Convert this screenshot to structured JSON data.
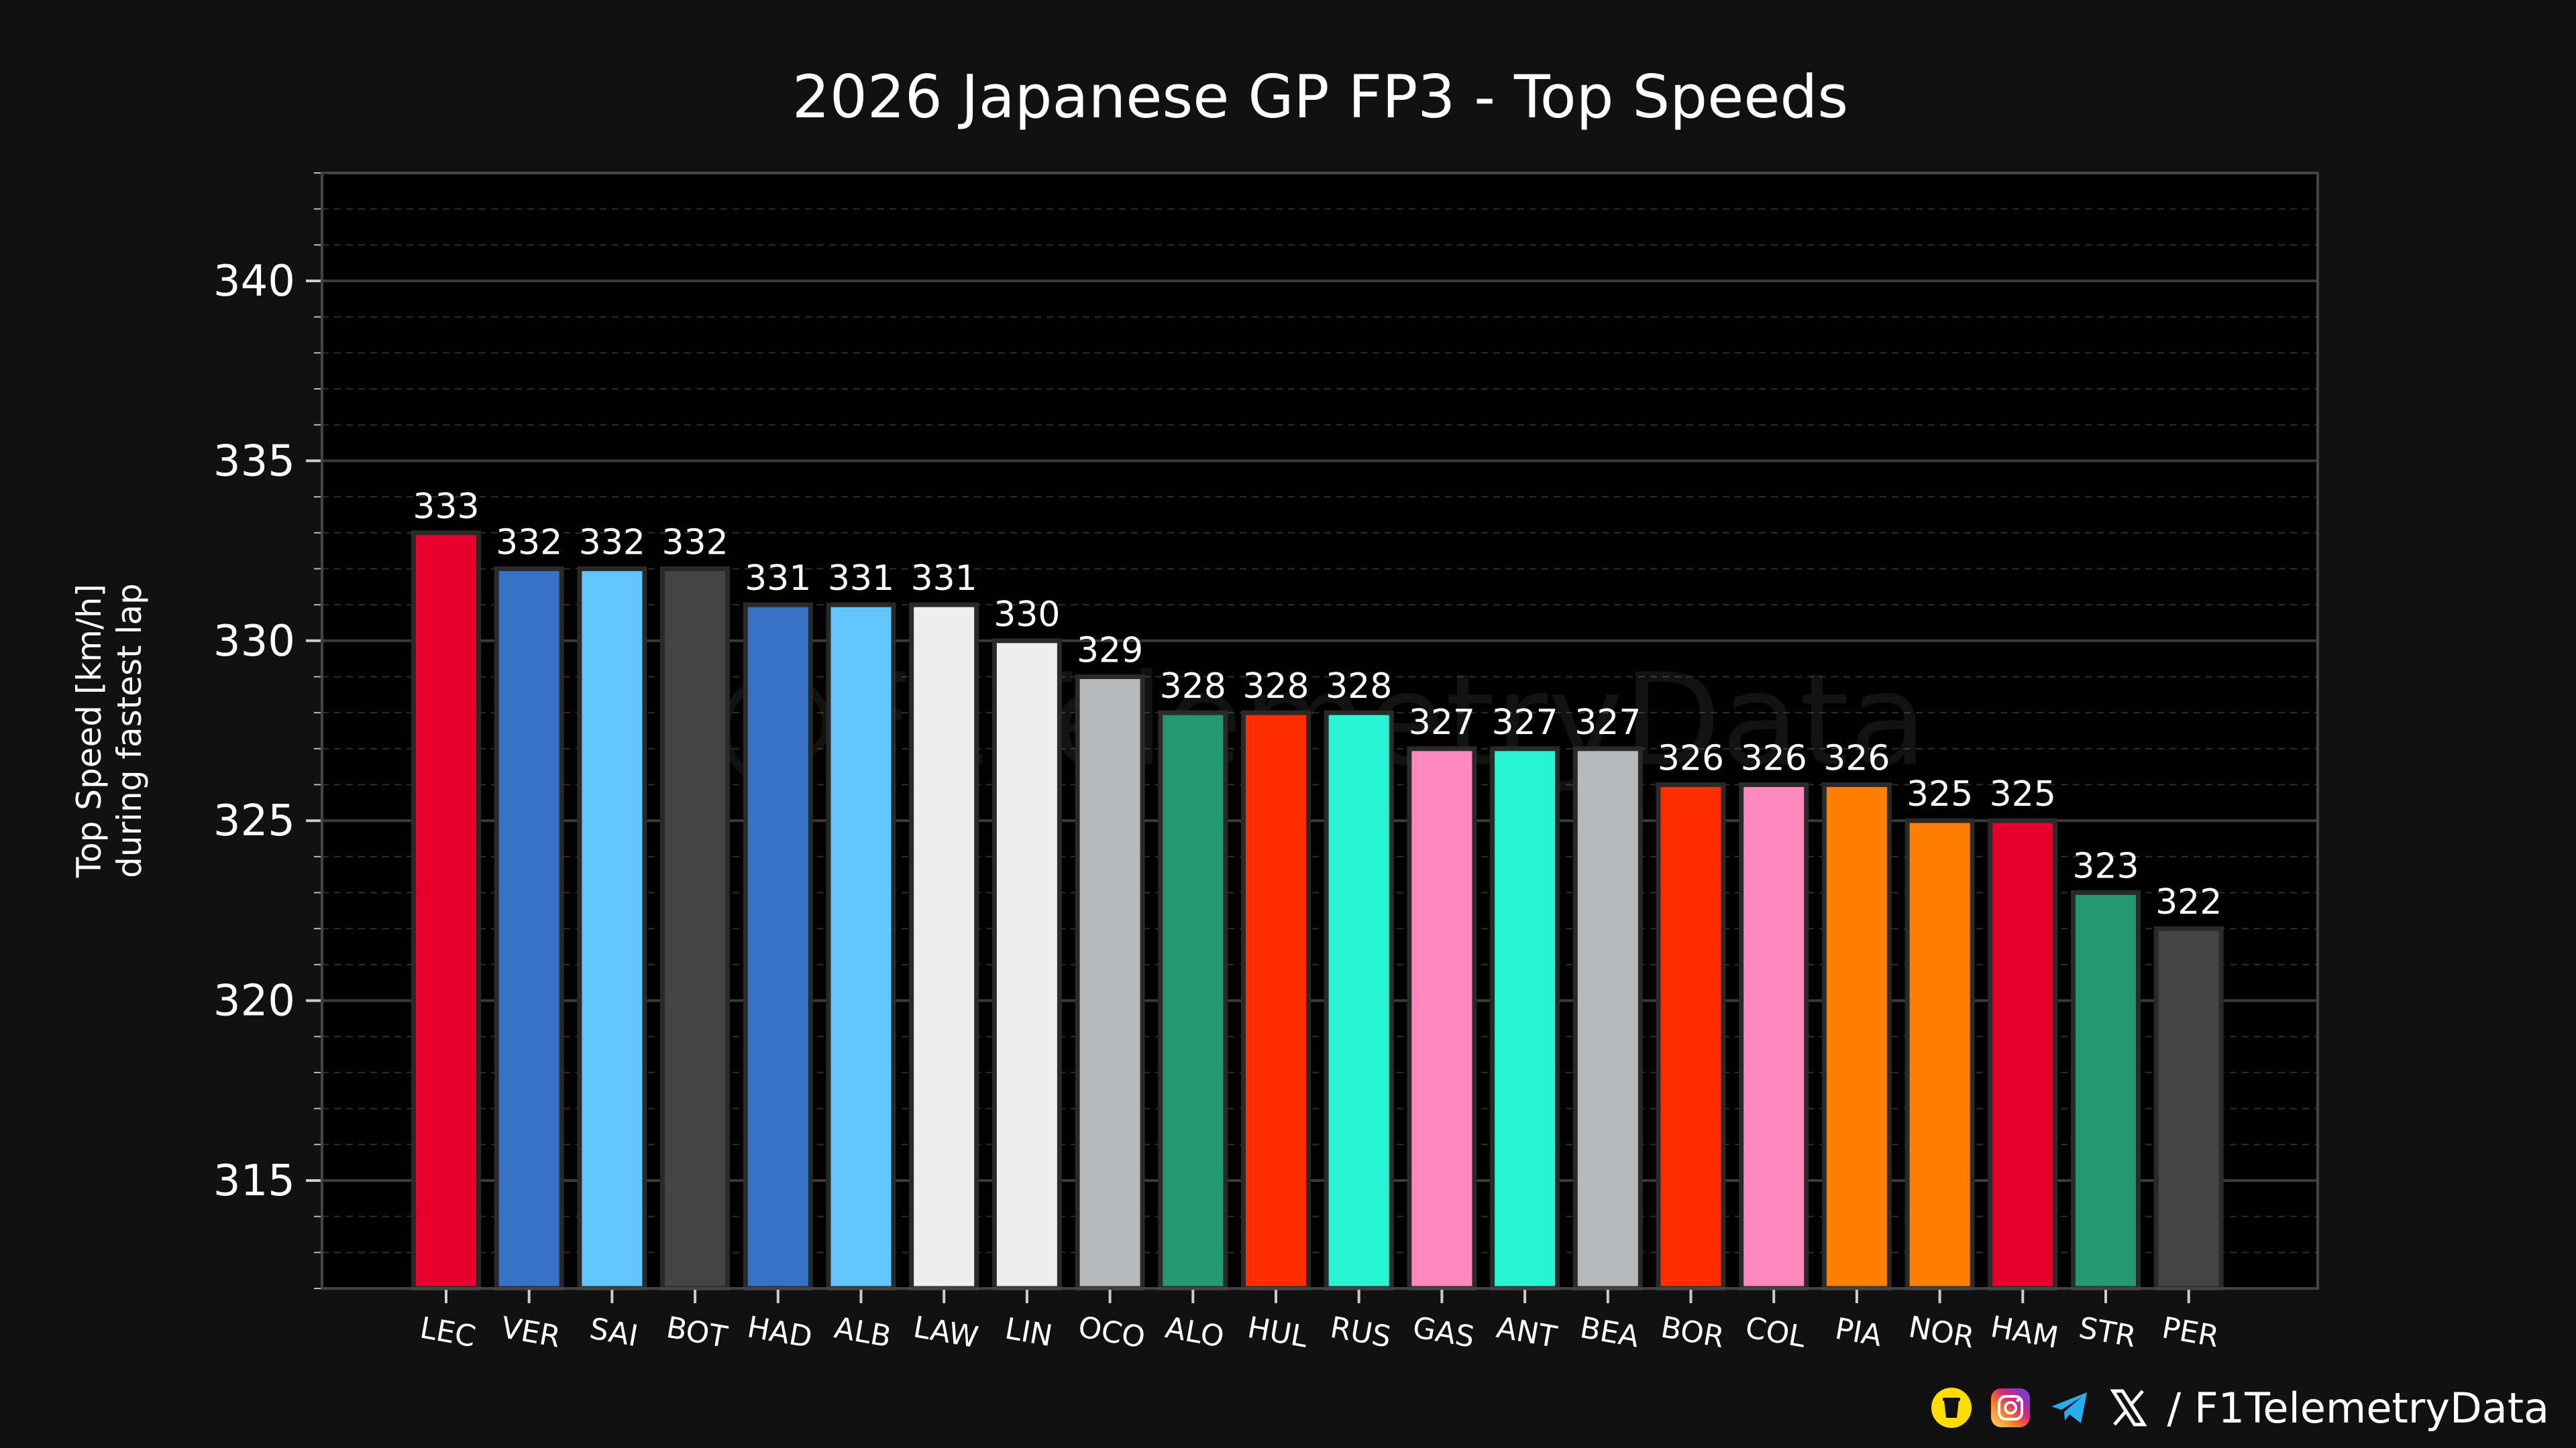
{
  "chart_data": {
    "type": "bar",
    "title": "2026 Japanese GP FP3 - Top Speeds",
    "xlabel": "",
    "ylabel": "Top Speed [km/h]\nduring fastest lap",
    "ylim": [
      312,
      343
    ],
    "yticks": [
      315,
      320,
      325,
      330,
      335,
      340
    ],
    "grid": true,
    "categories": [
      "LEC",
      "VER",
      "SAI",
      "BOT",
      "HAD",
      "ALB",
      "LAW",
      "LIN",
      "OCO",
      "ALO",
      "HUL",
      "RUS",
      "GAS",
      "ANT",
      "BEA",
      "BOR",
      "COL",
      "PIA",
      "NOR",
      "HAM",
      "STR",
      "PER"
    ],
    "values": [
      333,
      332,
      332,
      332,
      331,
      331,
      331,
      330,
      329,
      328,
      328,
      328,
      327,
      327,
      327,
      326,
      326,
      326,
      325,
      325,
      323,
      322
    ],
    "colors": [
      "#E8002D",
      "#3671C6",
      "#64C4FF",
      "#444444",
      "#3671C6",
      "#64C4FF",
      "#EEEEEE",
      "#EEEEEE",
      "#B6BABD",
      "#229971",
      "#FF2D00",
      "#27F4D2",
      "#FF87BC",
      "#27F4D2",
      "#B6BABD",
      "#FF2D00",
      "#FF87BC",
      "#FF8000",
      "#FF8000",
      "#E8002D",
      "#229971",
      "#444444"
    ],
    "watermark": "@F1TelemetryData"
  },
  "colors": {
    "background": "#111111",
    "plot_background": "#000000",
    "grid": "#3a3a3a",
    "text": "#ffffff"
  },
  "footer": {
    "icons": [
      "buy-me-a-coffee-icon",
      "instagram-icon",
      "telegram-icon",
      "x-icon"
    ],
    "handle": "/ F1TelemetryData"
  }
}
